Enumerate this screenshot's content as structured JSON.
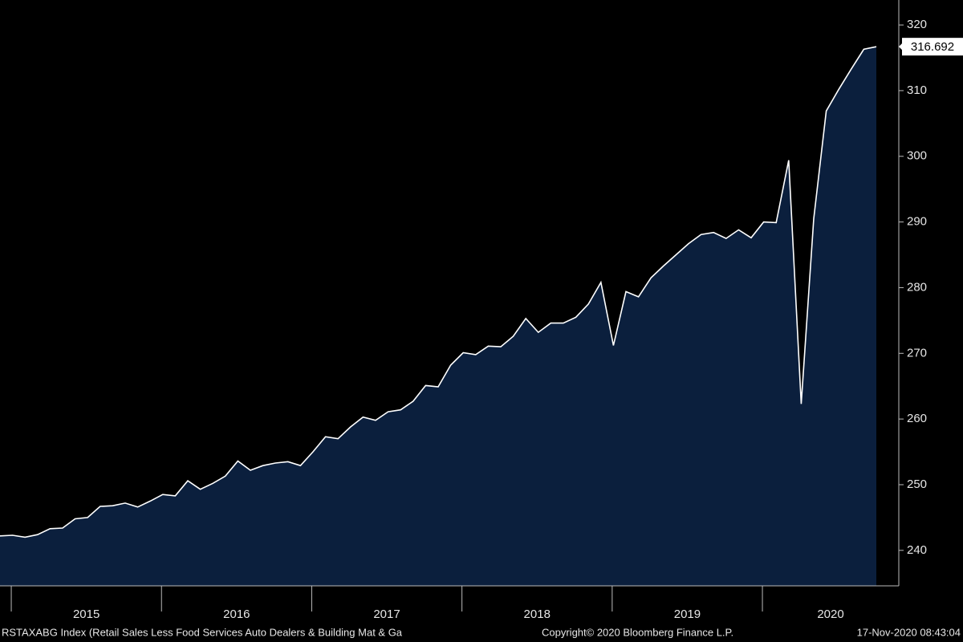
{
  "chart_data": {
    "type": "area",
    "x_axis_years": [
      "2015",
      "2016",
      "2017",
      "2018",
      "2019",
      "2020"
    ],
    "values": [
      242.2,
      242.3,
      242.0,
      242.4,
      243.3,
      243.4,
      244.8,
      245.0,
      246.7,
      246.8,
      247.2,
      246.6,
      247.5,
      248.5,
      248.3,
      250.6,
      249.3,
      250.2,
      251.3,
      253.6,
      252.2,
      252.9,
      253.3,
      253.5,
      252.9,
      255.0,
      257.3,
      257.0,
      258.8,
      260.3,
      259.8,
      261.1,
      261.4,
      262.7,
      265.1,
      264.9,
      268.2,
      270.1,
      269.8,
      271.1,
      271.0,
      272.6,
      275.3,
      273.2,
      274.6,
      274.6,
      275.5,
      277.5,
      280.8,
      271.2,
      279.4,
      278.6,
      281.5,
      283.3,
      285.0,
      286.7,
      288.1,
      288.4,
      287.5,
      288.8,
      287.6,
      290.0,
      289.9,
      299.4,
      262.3,
      290.5,
      306.9,
      310.2,
      313.3,
      316.3,
      316.692
    ],
    "color": "#0b1f3d",
    "line_color": "#ffffff",
    "ylim": [
      234.6,
      323.8
    ],
    "yticks": [
      240,
      250,
      260,
      270,
      280,
      290,
      300,
      310,
      320
    ],
    "footer_left": "RSTAXABG Index (Retail Sales Less Food Services Auto Dealers & Building Mat & Ga",
    "footer_center": "Copyright© 2020 Bloomberg Finance L.P.",
    "footer_right": "17-Nov-2020 08:43:04"
  }
}
